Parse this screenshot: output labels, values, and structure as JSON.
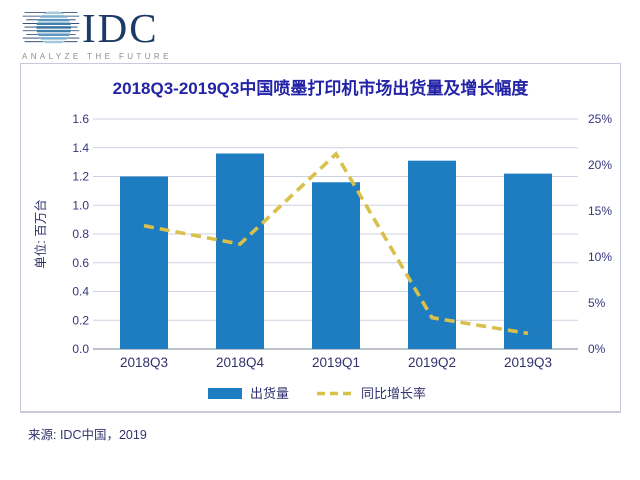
{
  "logo": {
    "text": "IDC",
    "tagline": "ANALYZE THE FUTURE"
  },
  "source_note": "来源: IDC中国，2019",
  "chart_data": {
    "type": "bar",
    "subtype": "combo-bar-line-dual-axis",
    "title": "2018Q3-2019Q3中国喷墨打印机市场出货量及增长幅度",
    "categories": [
      "2018Q3",
      "2018Q4",
      "2019Q1",
      "2019Q2",
      "2019Q3"
    ],
    "series": [
      {
        "name": "出货量",
        "type": "bar",
        "axis": "left",
        "color": "#1e7cc0",
        "values": [
          1.2,
          1.36,
          1.16,
          1.31,
          1.22
        ]
      },
      {
        "name": "同比增长率",
        "type": "line",
        "style": "dashed",
        "axis": "right",
        "color": "#d8c04a",
        "unit": "%",
        "values": [
          13.4,
          11.4,
          21.2,
          3.4,
          1.7
        ]
      }
    ],
    "left_axis": {
      "title": "单位: 百万台",
      "min": 0,
      "max": 1.6,
      "step": 0.2,
      "ticks": [
        "0.0",
        "0.2",
        "0.4",
        "0.6",
        "0.8",
        "1.0",
        "1.2",
        "1.4",
        "1.6"
      ]
    },
    "right_axis": {
      "min": 0,
      "max": 25,
      "step": 5,
      "ticks": [
        "0%",
        "5%",
        "10%",
        "15%",
        "20%",
        "25%"
      ]
    },
    "grid": true,
    "legend_position": "bottom"
  }
}
